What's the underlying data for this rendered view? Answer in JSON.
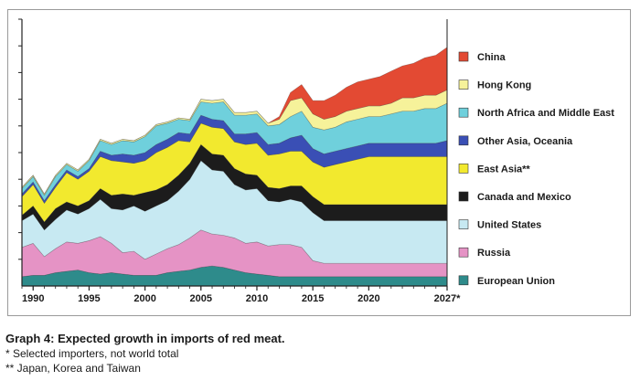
{
  "caption": {
    "title": "Graph 4: Expected growth in imports of red meat.",
    "note1": "* Selected importers, not world total",
    "note2": "** Japan, Korea and Taiwan"
  },
  "chart_data": {
    "type": "area",
    "stacked": true,
    "title": "",
    "xlabel": "",
    "ylabel": "",
    "x": [
      1989,
      1990,
      1991,
      1992,
      1993,
      1994,
      1995,
      1996,
      1997,
      1998,
      1999,
      2000,
      2001,
      2002,
      2003,
      2004,
      2005,
      2006,
      2007,
      2008,
      2009,
      2010,
      2011,
      2012,
      2013,
      2014,
      2015,
      2016,
      2017,
      2018,
      2019,
      2020,
      2021,
      2022,
      2023,
      2024,
      2025,
      2026,
      2027
    ],
    "x_tick_labels": [
      "1990",
      "1995",
      "2000",
      "2005",
      "2010",
      "2015",
      "2020",
      "2027*"
    ],
    "x_tick_values": [
      1990,
      1995,
      2000,
      2005,
      2010,
      2015,
      2020,
      2027
    ],
    "xlim": [
      1989,
      2027
    ],
    "ylim": [
      0,
      100
    ],
    "y_ticks_labeled": false,
    "grid": false,
    "legend_position": "right",
    "series": [
      {
        "name": "European Union",
        "color": "#2e8b8b",
        "values": [
          3.5,
          4,
          4,
          5,
          5.5,
          6,
          5,
          4.5,
          5,
          4.5,
          4,
          4,
          4,
          5,
          5.5,
          6,
          7,
          7.5,
          7,
          6,
          5,
          4.5,
          4,
          3.5,
          3.5,
          3.5,
          3.5,
          3.5,
          3.5,
          3.5,
          3.5,
          3.5,
          3.5,
          3.5,
          3.5,
          3.5,
          3.5,
          3.5,
          3.5
        ]
      },
      {
        "name": "Russia",
        "color": "#e593c5",
        "values": [
          11,
          12,
          7,
          9,
          11,
          10,
          12,
          14,
          11,
          8,
          9,
          6,
          8,
          9,
          10,
          12,
          14,
          12,
          12,
          12,
          11,
          12,
          11,
          12,
          12,
          11,
          6,
          5,
          5,
          5,
          5,
          5,
          5,
          5,
          5,
          5,
          5,
          5,
          5
        ]
      },
      {
        "name": "United States",
        "color": "#c7e9f2",
        "values": [
          10,
          11,
          10,
          11,
          12,
          11,
          12,
          14,
          13,
          16,
          17,
          18,
          18,
          18,
          20,
          22,
          26,
          24,
          24,
          20,
          20,
          20,
          17,
          16,
          17,
          17,
          18,
          16,
          16,
          16,
          16,
          16,
          16,
          16,
          16,
          16,
          16,
          16,
          16
        ]
      },
      {
        "name": "Canada and Mexico",
        "color": "#1c1c1c",
        "values": [
          2,
          3,
          3,
          4,
          3,
          3,
          3,
          4,
          5,
          6,
          4,
          7,
          6,
          6,
          6,
          6,
          6,
          6,
          6,
          6,
          6,
          5,
          5,
          5,
          5,
          6,
          6,
          6,
          6,
          6,
          6,
          6,
          6,
          6,
          6,
          6,
          6,
          6,
          6
        ]
      },
      {
        "name": "East Asia**",
        "color": "#f2e92e",
        "values": [
          7,
          8,
          7,
          8,
          11,
          10,
          11,
          12,
          13,
          12,
          12,
          12,
          14,
          14,
          13,
          8,
          8,
          10,
          10,
          10,
          11,
          12,
          12,
          13,
          13,
          13,
          13,
          14,
          15,
          16,
          17,
          18,
          18,
          18,
          18,
          18,
          18,
          18,
          18
        ]
      },
      {
        "name": "Other Asia, Oceania",
        "color": "#3a4fb5",
        "values": [
          1,
          1,
          1,
          1,
          1,
          1,
          1,
          2,
          2,
          3,
          3,
          3,
          3,
          3,
          3,
          3,
          3,
          3,
          3,
          3,
          4,
          4,
          4,
          4,
          5,
          6,
          5,
          5,
          5,
          5,
          5,
          5,
          5,
          5,
          5,
          5,
          5,
          5,
          6
        ]
      },
      {
        "name": "North Africa and Middle East",
        "color": "#6fd0dc",
        "values": [
          2,
          2,
          2,
          3,
          2,
          2,
          3,
          4,
          4,
          5,
          5,
          6,
          7,
          6,
          5,
          5,
          5,
          6,
          7,
          7,
          7,
          7,
          7,
          7,
          8,
          9,
          8,
          9,
          9,
          10,
          10,
          10,
          10,
          11,
          12,
          12,
          13,
          13,
          14
        ]
      },
      {
        "name": "Hong Kong",
        "color": "#f6f29a",
        "values": [
          0.5,
          0.5,
          0.5,
          0.5,
          0.5,
          0.5,
          0.5,
          0.5,
          0.5,
          0.5,
          0.5,
          0.5,
          0.5,
          0.5,
          0.5,
          0.5,
          1,
          1,
          1,
          1,
          1,
          1,
          1,
          2,
          6,
          5,
          5,
          4,
          4,
          4,
          4,
          4,
          4,
          4,
          5,
          5,
          5,
          5,
          5
        ]
      },
      {
        "name": "China",
        "color": "#e34a33",
        "values": [
          0,
          0,
          0,
          0,
          0,
          0,
          0,
          0,
          0,
          0,
          0,
          0,
          0,
          0,
          0,
          0,
          0,
          0,
          0,
          0,
          0,
          0,
          0,
          1,
          3,
          5,
          5,
          7,
          8,
          9,
          10,
          10,
          11,
          12,
          12,
          13,
          14,
          15,
          16
        ]
      }
    ]
  }
}
